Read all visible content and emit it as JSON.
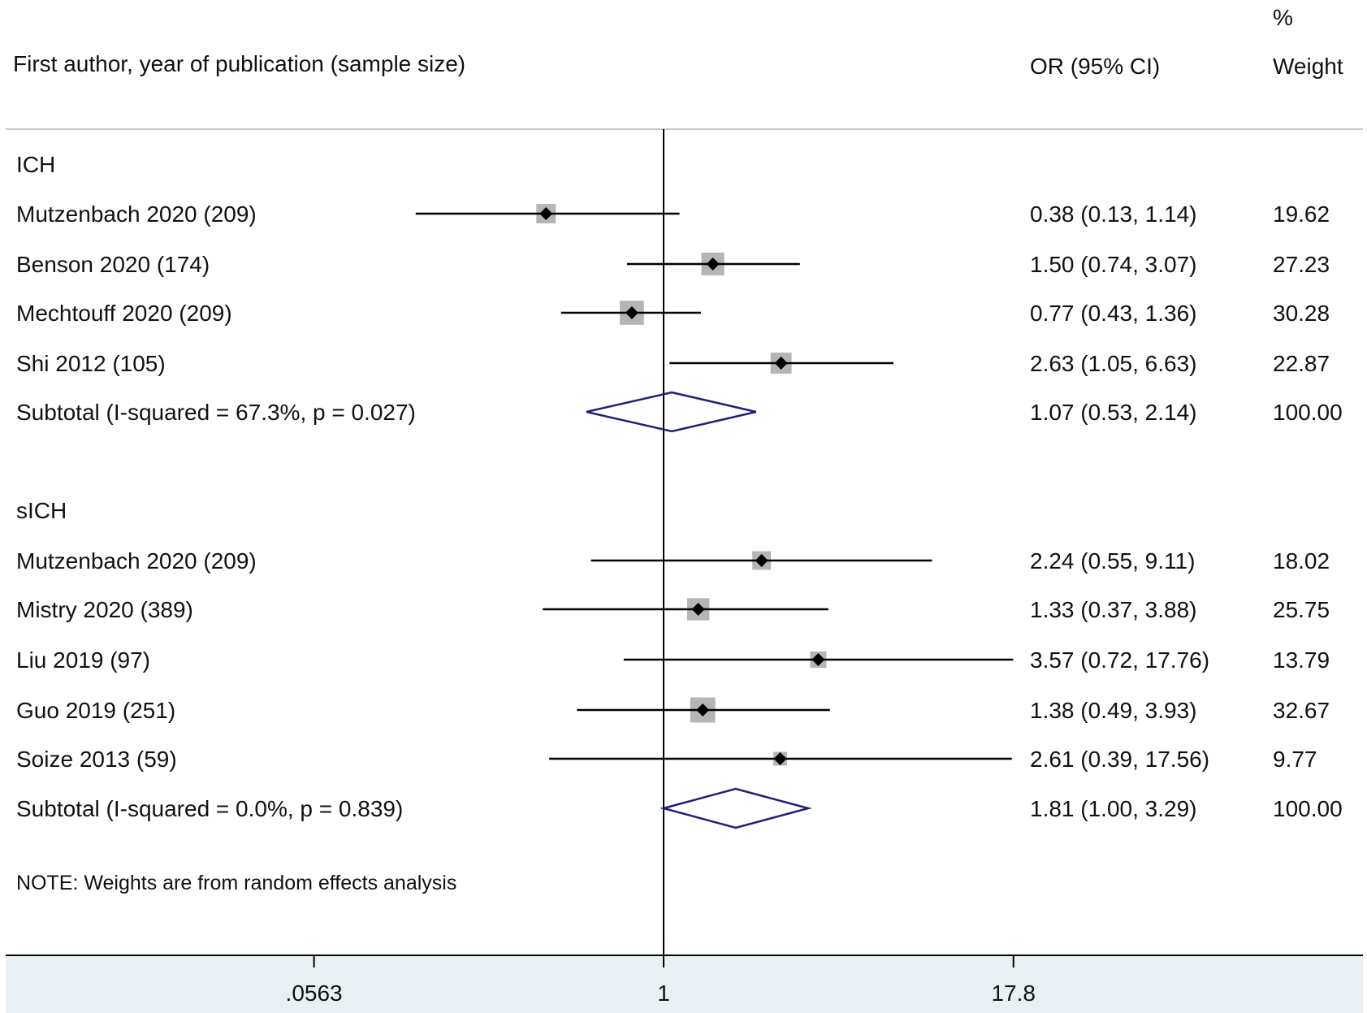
{
  "header": {
    "study_col": "First author, year of publication (sample size)",
    "or_col": "OR (95% CI)",
    "weight_col_line1": "%",
    "weight_col_line2": "Weight"
  },
  "note": "NOTE: Weights are from random effects analysis",
  "colors": {
    "line": "#000000",
    "marker_box": "#b5b5b5",
    "diamond": "#1f1f7a",
    "axis_band": "#e8f0f3"
  },
  "chart_data": {
    "type": "forest",
    "scale": "log",
    "x_ticks": [
      0.0563,
      1,
      17.8
    ],
    "x_tick_labels": [
      ".0563",
      "1",
      "17.8"
    ],
    "reference_line": 1,
    "groups": [
      {
        "name": "ICH",
        "studies": [
          {
            "label": "Mutzenbach 2020 (209)",
            "or": 0.38,
            "lo": 0.13,
            "hi": 1.14,
            "ci_text": "0.38 (0.13, 1.14)",
            "weight": 19.62,
            "weight_text": "19.62"
          },
          {
            "label": "Benson 2020 (174)",
            "or": 1.5,
            "lo": 0.74,
            "hi": 3.07,
            "ci_text": "1.50 (0.74, 3.07)",
            "weight": 27.23,
            "weight_text": "27.23"
          },
          {
            "label": "Mechtouff 2020 (209)",
            "or": 0.77,
            "lo": 0.43,
            "hi": 1.36,
            "ci_text": "0.77 (0.43, 1.36)",
            "weight": 30.28,
            "weight_text": "30.28"
          },
          {
            "label": "Shi 2012 (105)",
            "or": 2.63,
            "lo": 1.05,
            "hi": 6.63,
            "ci_text": "2.63 (1.05, 6.63)",
            "weight": 22.87,
            "weight_text": "22.87"
          }
        ],
        "subtotal": {
          "label": "Subtotal  (I-squared = 67.3%, p = 0.027)",
          "or": 1.07,
          "lo": 0.53,
          "hi": 2.14,
          "ci_text": "1.07 (0.53, 2.14)",
          "weight_text": "100.00"
        }
      },
      {
        "name": "sICH",
        "studies": [
          {
            "label": "Mutzenbach 2020 (209)",
            "or": 2.24,
            "lo": 0.55,
            "hi": 9.11,
            "ci_text": "2.24 (0.55, 9.11)",
            "weight": 18.02,
            "weight_text": "18.02"
          },
          {
            "label": "Mistry 2020 (389)",
            "or": 1.33,
            "lo": 0.37,
            "hi": 3.88,
            "ci_text": "1.33 (0.37, 3.88)",
            "weight": 25.75,
            "weight_text": "25.75"
          },
          {
            "label": "Liu 2019 (97)",
            "or": 3.57,
            "lo": 0.72,
            "hi": 17.76,
            "ci_text": "3.57 (0.72, 17.76)",
            "weight": 13.79,
            "weight_text": "13.79"
          },
          {
            "label": "Guo 2019 (251)",
            "or": 1.38,
            "lo": 0.49,
            "hi": 3.93,
            "ci_text": "1.38 (0.49, 3.93)",
            "weight": 32.67,
            "weight_text": "32.67"
          },
          {
            "label": "Soize 2013 (59)",
            "or": 2.61,
            "lo": 0.39,
            "hi": 17.56,
            "ci_text": "2.61 (0.39, 17.56)",
            "weight": 9.77,
            "weight_text": "9.77"
          }
        ],
        "subtotal": {
          "label": "Subtotal  (I-squared = 0.0%, p = 0.839)",
          "or": 1.81,
          "lo": 1.0,
          "hi": 3.29,
          "ci_text": "1.81 (1.00, 3.29)",
          "weight_text": "100.00"
        }
      }
    ]
  }
}
